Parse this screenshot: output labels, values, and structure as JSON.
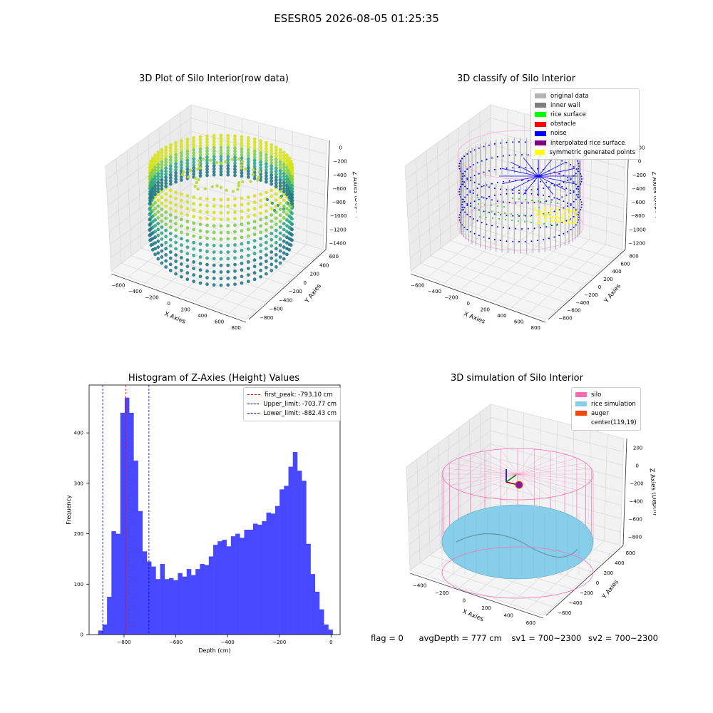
{
  "suptitle": "ESESR05 2026-08-05 01:25:35",
  "panels": {
    "raw": {
      "title": "3D Plot of Silo Interior(row data)",
      "xlabel": "X Axies",
      "ylabel": "Y Axies",
      "zlabel": "Z Axies (Depth)",
      "xticks": [
        "−600",
        "−400",
        "−200",
        "0",
        "200",
        "400",
        "600",
        "800"
      ],
      "yticks": [
        "−800",
        "−600",
        "−400",
        "−200",
        "0",
        "200",
        "400",
        "600"
      ],
      "zticks": [
        "0",
        "−200",
        "−400",
        "−600",
        "−800",
        "−1000",
        "−1200",
        "−1400"
      ]
    },
    "classify": {
      "title": "3D classify of Silo Interior",
      "xlabel": "X Axies",
      "ylabel": "Y Axies",
      "zlabel": "Z Axies (Depth)",
      "xticks": [
        "−600",
        "−400",
        "−200",
        "0",
        "200",
        "400",
        "600",
        "800"
      ],
      "yticks": [
        "−800",
        "−600",
        "−400",
        "−200",
        "0",
        "200",
        "400",
        "600",
        "800"
      ],
      "zticks": [
        "200",
        "0",
        "−200",
        "−400",
        "−600",
        "−800",
        "−1000",
        "−1200"
      ],
      "legend": [
        {
          "label": "original data",
          "color": "#b4b4b4"
        },
        {
          "label": "inner wall",
          "color": "#808080"
        },
        {
          "label": "rice surface",
          "color": "#00ff00"
        },
        {
          "label": "obstacle",
          "color": "#ff0000"
        },
        {
          "label": "noise",
          "color": "#0000ff"
        },
        {
          "label": "interpolated rice surface",
          "color": "#800080"
        },
        {
          "label": "symmetric generated points",
          "color": "#ffff00"
        }
      ]
    },
    "simulation": {
      "title": "3D simulation of Silo Interior",
      "xlabel": "X Axies",
      "ylabel": "Y Axies",
      "zlabel": "Z Axies (Depth)",
      "xticks": [
        "−400",
        "−200",
        "0",
        "200",
        "400",
        "600"
      ],
      "yticks": [
        "−600",
        "−400",
        "−200",
        "0",
        "200",
        "400",
        "600"
      ],
      "zticks": [
        "200",
        "0",
        "−200",
        "−400",
        "−600",
        "−800"
      ],
      "legend": [
        {
          "label": "silo",
          "color": "#ff69b4"
        },
        {
          "label": "rice simulation",
          "color": "#87ceeb"
        },
        {
          "label": "auger",
          "color": "#ff4500"
        },
        {
          "label": "center(119,19)",
          "color": ""
        }
      ]
    }
  },
  "chart_data": {
    "type": "bar",
    "title": "Histogram of Z-Axies (Height) Values",
    "xlabel": "Depth (cm)",
    "ylabel": "Frequency",
    "xlim": [
      -935,
      35
    ],
    "ylim": [
      0,
      495
    ],
    "xticks": [
      -800,
      -600,
      -400,
      -200,
      0
    ],
    "xtick_labels": [
      "−800",
      "−600",
      "−400",
      "−200",
      "0"
    ],
    "yticks": [
      0,
      100,
      200,
      300,
      400
    ],
    "bin_width": 17.1,
    "bin_start": -900,
    "values": [
      8,
      20,
      75,
      205,
      200,
      440,
      470,
      440,
      345,
      245,
      165,
      145,
      135,
      110,
      140,
      110,
      112,
      108,
      122,
      115,
      130,
      118,
      130,
      140,
      138,
      155,
      178,
      185,
      188,
      175,
      195,
      200,
      192,
      208,
      208,
      220,
      218,
      225,
      242,
      240,
      255,
      288,
      295,
      333,
      362,
      325,
      305,
      180,
      120,
      85,
      50,
      20,
      10
    ],
    "color": "#4848ff",
    "vlines": [
      {
        "x": -793.1,
        "color": "#ff0000",
        "label": "first_peak: -793.10 cm"
      },
      {
        "x": -703.77,
        "color": "#0000aa",
        "label": "Upper_limit: -703.77 cm"
      },
      {
        "x": -882.43,
        "color": "#0000aa",
        "label": "Lower_limit: -882.43 cm"
      }
    ],
    "legend_position": "upper right"
  },
  "status": {
    "flag": "flag = 0",
    "avg": "avgDepth = 777 cm",
    "sv1": "sv1 = 700~2300",
    "sv2": "sv2 = 700~2300"
  }
}
